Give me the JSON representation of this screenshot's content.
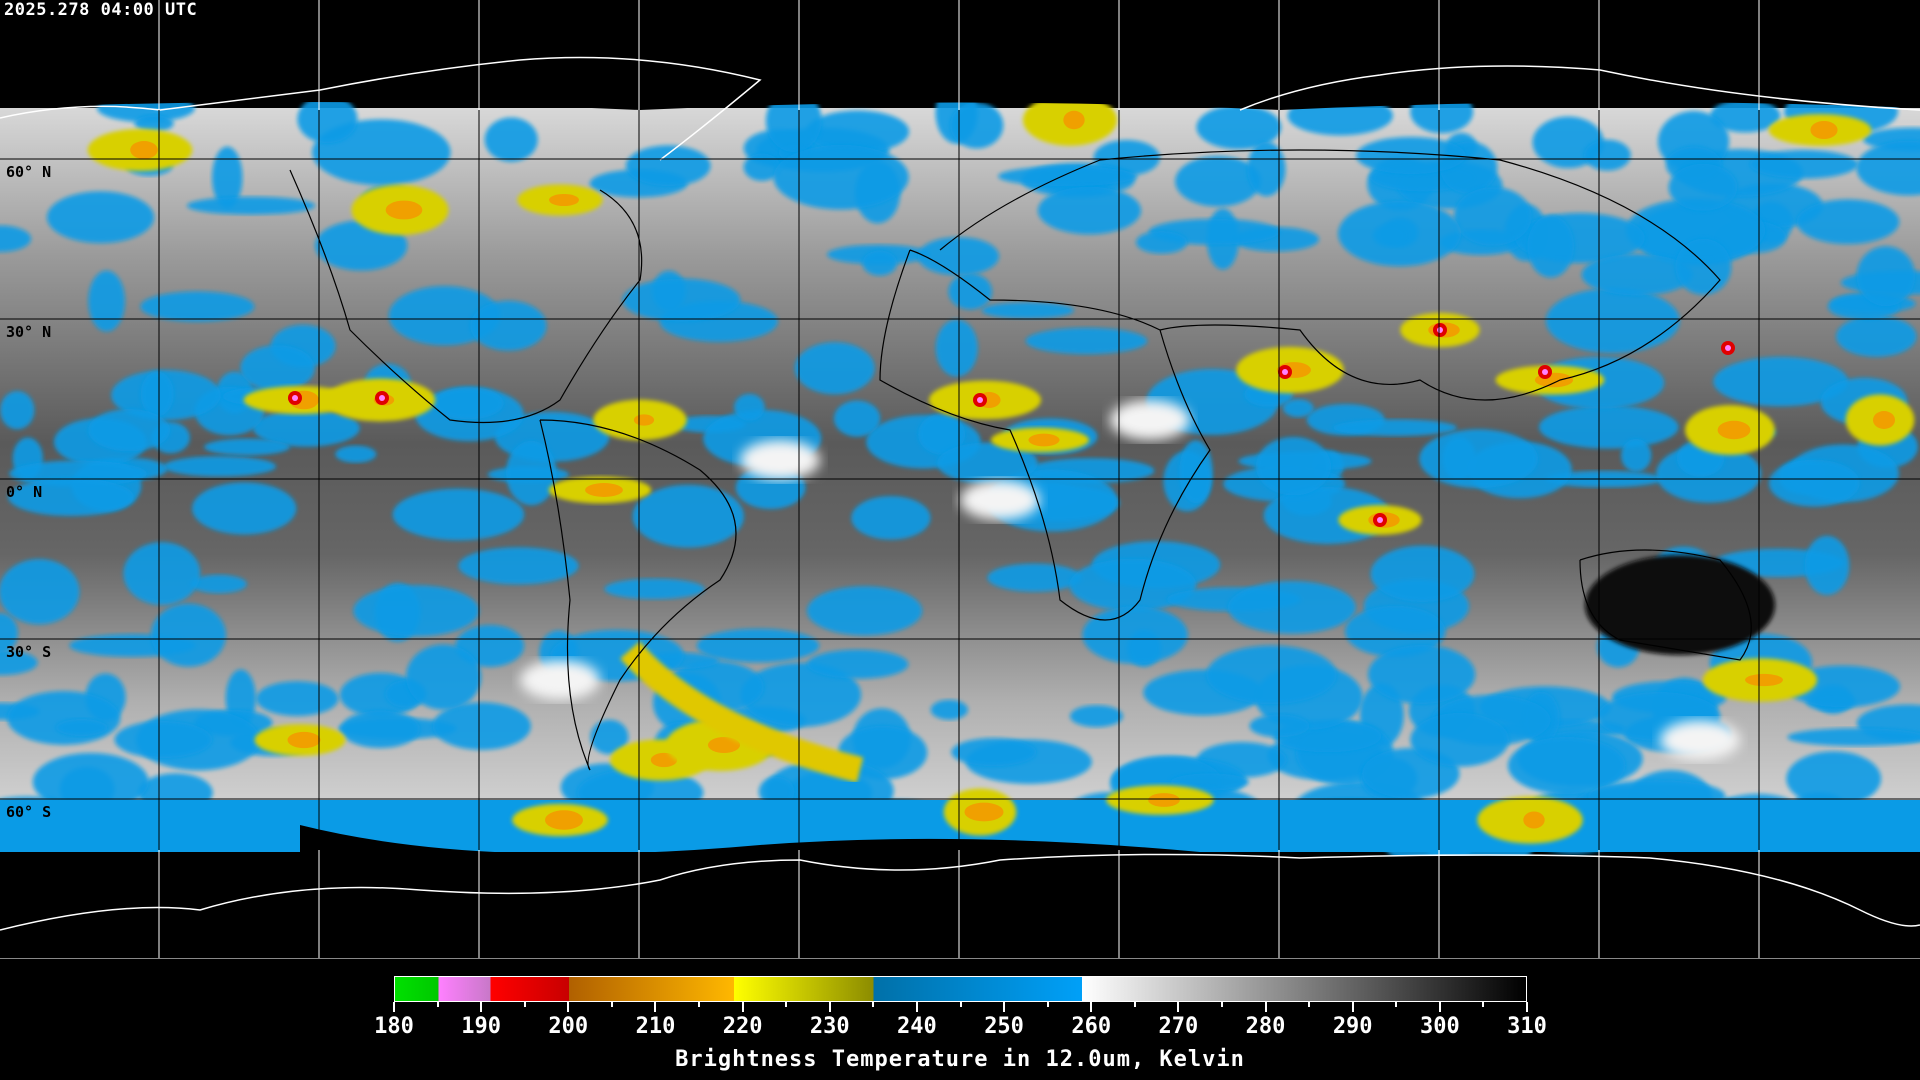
{
  "header": {
    "timestamp": "2025.278 04:00 UTC"
  },
  "map": {
    "projection": "equirectangular",
    "grid_spacing_degrees": 30,
    "lat_labels": [
      "60° N",
      "30° N",
      "0° N",
      "30° S",
      "60° S"
    ],
    "coastline_color": "#000000",
    "polar_coastline_color": "#ffffff",
    "grid_color": "#ffffff"
  },
  "colorbar": {
    "min": 180,
    "max": 310,
    "tick_labels": [
      "180",
      "190",
      "200",
      "210",
      "220",
      "230",
      "240",
      "250",
      "260",
      "270",
      "280",
      "290",
      "300",
      "310"
    ],
    "title": "Brightness Temperature in 12.0um, Kelvin",
    "segments": [
      {
        "from": 180,
        "to": 185,
        "colors": [
          "#00e000",
          "#00c800"
        ]
      },
      {
        "from": 185,
        "to": 191,
        "colors": [
          "#ff80ff",
          "#c878c8"
        ]
      },
      {
        "from": 191,
        "to": 200,
        "colors": [
          "#ff0000",
          "#c80000"
        ]
      },
      {
        "from": 200,
        "to": 219,
        "colors": [
          "#b06000",
          "#ffb800"
        ]
      },
      {
        "from": 219,
        "to": 235,
        "colors": [
          "#ffff00",
          "#8c8c00"
        ]
      },
      {
        "from": 235,
        "to": 259,
        "colors": [
          "#0070a8",
          "#00a0f8"
        ]
      },
      {
        "from": 259,
        "to": 310,
        "colors": [
          "#ffffff",
          "#000000"
        ]
      }
    ]
  }
}
